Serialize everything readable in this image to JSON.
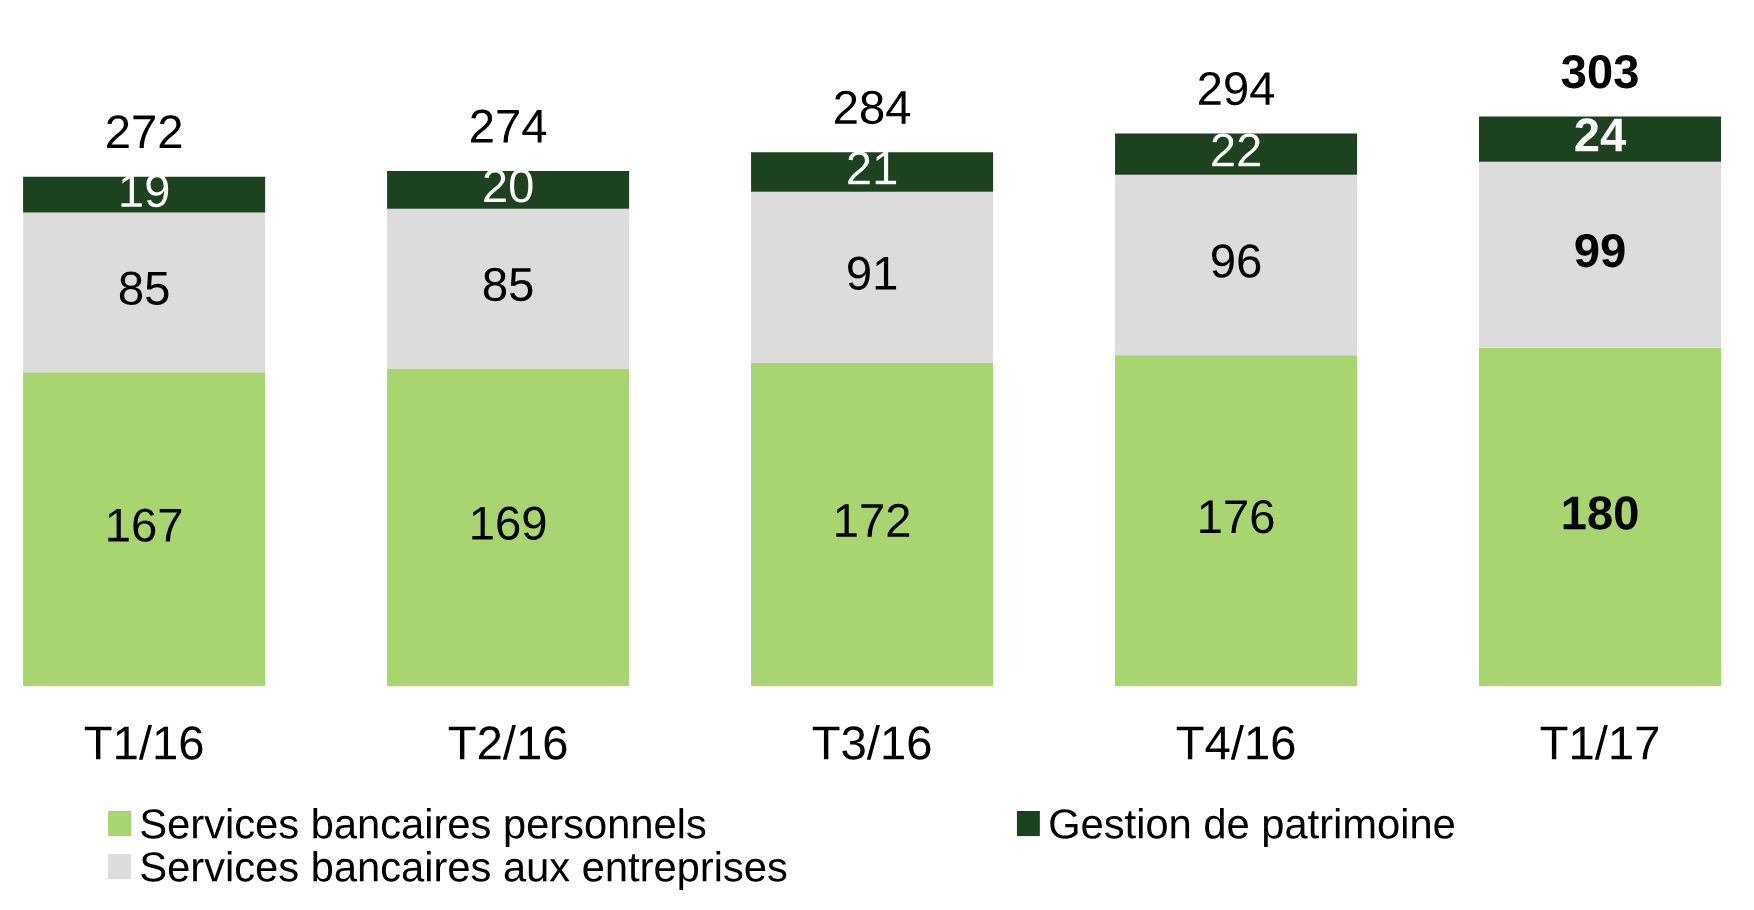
{
  "chart_data": {
    "type": "bar",
    "stacked": true,
    "data_labels": true,
    "legend": "bottom",
    "grid": false,
    "tick_labels": "x",
    "categories": [
      "T1/16",
      "T2/16",
      "T3/16",
      "T4/16",
      "T1/17"
    ],
    "series": [
      {
        "name": "Services bancaires personnels",
        "color": "#a9d571",
        "values": [
          167,
          169,
          172,
          176,
          180
        ]
      },
      {
        "name": "Services bancaires aux entreprises",
        "color": "#dcdcdc",
        "values": [
          85,
          85,
          91,
          96,
          99
        ]
      },
      {
        "name": "Gestion de patrimoine",
        "color": "#1c4220",
        "values": [
          19,
          20,
          21,
          22,
          24
        ]
      }
    ],
    "totals": [
      "272",
      "274",
      "284",
      "294",
      "303"
    ]
  }
}
